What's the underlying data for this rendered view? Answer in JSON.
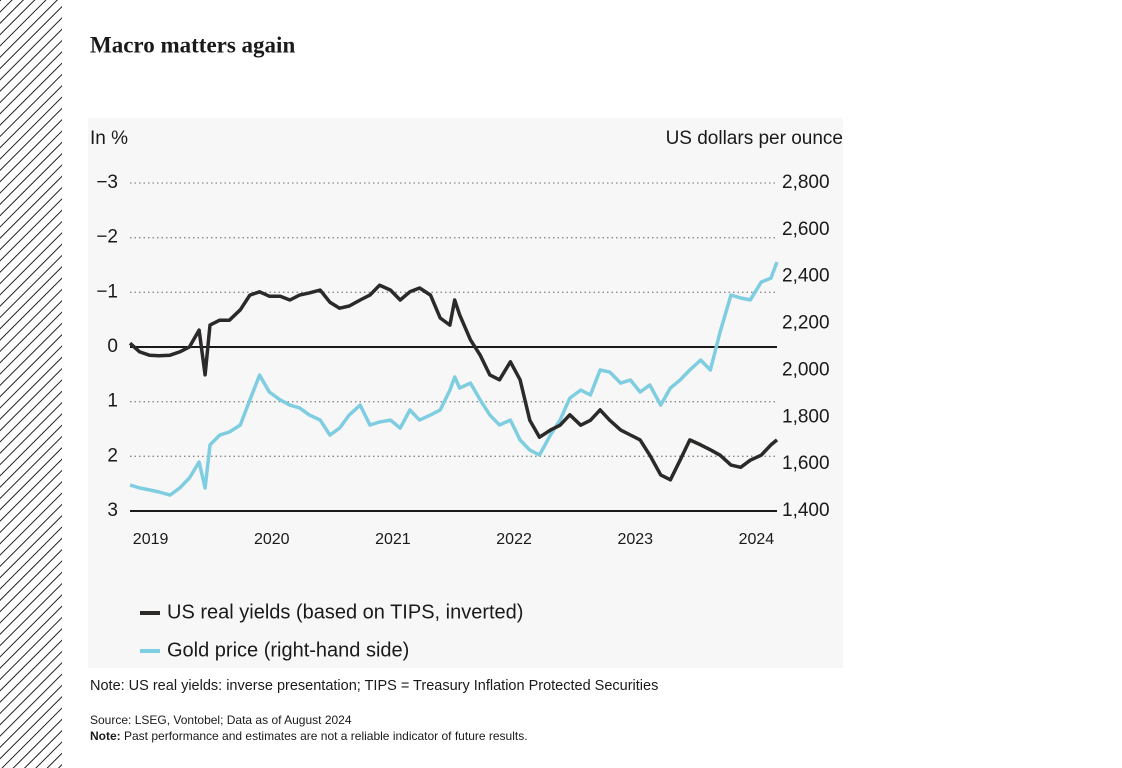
{
  "title": "Macro matters again",
  "chart_data": {
    "type": "line",
    "y_label": "In %",
    "y2_label": "US dollars per ounce",
    "x": [
      2018.83,
      2018.91,
      2018.99,
      2019.07,
      2019.16,
      2019.24,
      2019.32,
      2019.4,
      2019.45,
      2019.49,
      2019.57,
      2019.65,
      2019.74,
      2019.82,
      2019.9,
      2019.98,
      2020.07,
      2020.15,
      2020.23,
      2020.31,
      2020.4,
      2020.48,
      2020.56,
      2020.64,
      2020.73,
      2020.81,
      2020.89,
      2020.98,
      2021.06,
      2021.14,
      2021.22,
      2021.31,
      2021.39,
      2021.47,
      2021.51,
      2021.55,
      2021.64,
      2021.72,
      2021.8,
      2021.88,
      2021.97,
      2022.05,
      2022.13,
      2022.21,
      2022.3,
      2022.38,
      2022.46,
      2022.55,
      2022.63,
      2022.71,
      2022.79,
      2022.88,
      2022.96,
      2023.04,
      2023.12,
      2023.21,
      2023.29,
      2023.37,
      2023.45,
      2023.54,
      2023.62,
      2023.7,
      2023.79,
      2023.87,
      2023.95,
      2024.04,
      2024.12,
      2024.17
    ],
    "xlim": [
      2018.83,
      2024.17
    ],
    "xticks": [
      2019,
      2020,
      2021,
      2022,
      2023,
      2024
    ],
    "ylim": [
      3,
      -3
    ],
    "yticks": [
      {
        "value": 3,
        "label": "3"
      },
      {
        "value": 2,
        "label": "2"
      },
      {
        "value": 1,
        "label": "1"
      },
      {
        "value": 0,
        "label": "0"
      },
      {
        "value": -1,
        "label": "−1"
      },
      {
        "value": -2,
        "label": "−2"
      },
      {
        "value": -3,
        "label": "−3"
      }
    ],
    "y2lim": [
      1400,
      2800
    ],
    "y2ticks": [
      {
        "value": 1400,
        "label": "1,400"
      },
      {
        "value": 1600,
        "label": "1,600"
      },
      {
        "value": 1800,
        "label": "1,800"
      },
      {
        "value": 2000,
        "label": "2,000"
      },
      {
        "value": 2200,
        "label": "2,200"
      },
      {
        "value": 2400,
        "label": "2,400"
      },
      {
        "value": 2600,
        "label": "2,600"
      },
      {
        "value": 2800,
        "label": "2,800"
      }
    ],
    "grid": true,
    "zero_line": true,
    "legend": "bottom-left",
    "series": [
      {
        "name": "US real yields (based on TIPS, inverted)",
        "color": "#2b2a29",
        "values": [
          -0.07,
          0.09,
          0.15,
          0.16,
          0.15,
          0.09,
          0,
          -0.31,
          0.51,
          -0.4,
          -0.49,
          -0.49,
          -0.68,
          -0.95,
          -1.01,
          -0.93,
          -0.93,
          -0.86,
          -0.95,
          -0.99,
          -1.04,
          -0.82,
          -0.71,
          -0.75,
          -0.86,
          -0.95,
          -1.13,
          -1.04,
          -0.86,
          -1.01,
          -1.08,
          -0.95,
          -0.53,
          -0.4,
          -0.86,
          -0.59,
          -0.13,
          0.15,
          0.51,
          0.6,
          0.27,
          0.6,
          1.34,
          1.65,
          1.52,
          1.43,
          1.24,
          1.43,
          1.34,
          1.15,
          1.34,
          1.52,
          1.61,
          1.7,
          1.98,
          2.34,
          2.43,
          2.07,
          1.7,
          1.79,
          1.88,
          1.98,
          2.16,
          2.2,
          2.07,
          1.98,
          1.79,
          1.7
        ]
      },
      {
        "name": "Gold price (right-hand side)",
        "color": "#7fcde0",
        "axis": "y2",
        "values": [
          1511,
          1498,
          1490,
          1481,
          1468,
          1498,
          1541,
          1609,
          1498,
          1682,
          1724,
          1737,
          1767,
          1874,
          1980,
          1908,
          1874,
          1852,
          1840,
          1810,
          1788,
          1724,
          1754,
          1810,
          1852,
          1767,
          1780,
          1788,
          1754,
          1831,
          1788,
          1810,
          1831,
          1916,
          1972,
          1925,
          1946,
          1874,
          1810,
          1767,
          1788,
          1703,
          1660,
          1639,
          1724,
          1788,
          1882,
          1916,
          1895,
          2002,
          1993,
          1946,
          1959,
          1908,
          1938,
          1852,
          1925,
          1959,
          2002,
          2044,
          2002,
          2164,
          2322,
          2309,
          2301,
          2377,
          2394,
          2463
        ]
      }
    ]
  },
  "note": "Note: US real yields: inverse presentation; TIPS = Treasury Inflation Protected Securities",
  "footer": {
    "source": "Source: LSEG, Vontobel; Data as of August 2024",
    "note_label": "Note:",
    "note_text": " Past performance and estimates are not a reliable indicator of future results."
  }
}
